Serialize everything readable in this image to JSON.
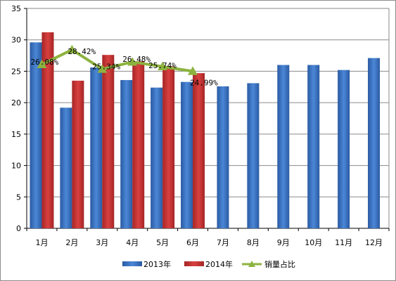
{
  "chart_data": {
    "type": "bar",
    "title": "",
    "xlabel": "",
    "ylabel": "",
    "categories": [
      "1月",
      "2月",
      "3月",
      "4月",
      "5月",
      "6月",
      "7月",
      "8月",
      "9月",
      "10月",
      "11月",
      "12月"
    ],
    "ylim": [
      0,
      35
    ],
    "yticks": [
      0,
      5,
      10,
      15,
      20,
      25,
      30,
      35
    ],
    "grid": true,
    "legend_position": "bottom",
    "series": [
      {
        "name": "2013年",
        "type": "bar",
        "color": "#3d76c6",
        "values": [
          29.6,
          19.2,
          25.6,
          23.6,
          22.4,
          23.3,
          22.6,
          23.1,
          26.0,
          26.0,
          25.2,
          27.1
        ]
      },
      {
        "name": "2014年",
        "type": "bar",
        "color": "#c83232",
        "values": [
          31.2,
          23.5,
          27.6,
          26.6,
          25.8,
          24.7,
          null,
          null,
          null,
          null,
          null,
          null
        ]
      },
      {
        "name": "销量占比",
        "type": "line",
        "color": "#8db33f",
        "values": [
          26.08,
          28.42,
          25.34,
          26.48,
          25.74,
          24.99,
          null,
          null,
          null,
          null,
          null,
          null
        ],
        "labels": [
          "26.08%",
          "28.42%",
          "25.34%",
          "26.48%",
          "25.74%",
          "24.99%"
        ]
      }
    ]
  }
}
